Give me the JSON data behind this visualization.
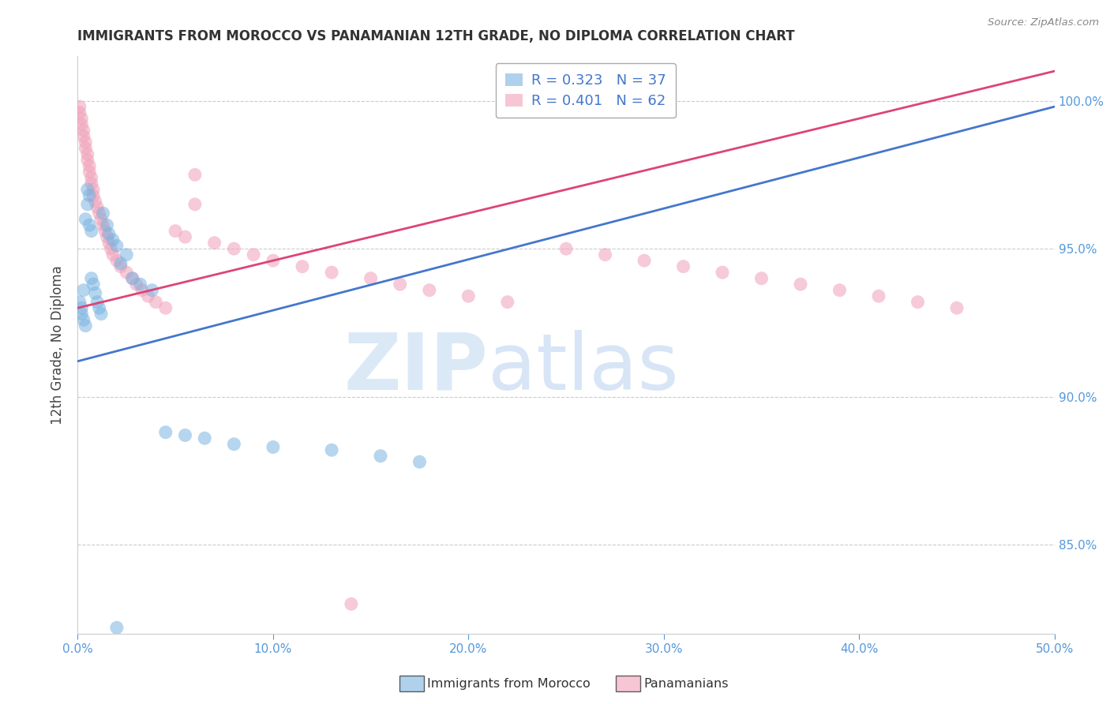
{
  "title": "IMMIGRANTS FROM MOROCCO VS PANAMANIAN 12TH GRADE, NO DIPLOMA CORRELATION CHART",
  "source": "Source: ZipAtlas.com",
  "ylabel": "12th Grade, No Diploma",
  "xlim": [
    0.0,
    0.5
  ],
  "ylim": [
    0.82,
    1.015
  ],
  "xtick_labels": [
    "0.0%",
    "",
    "",
    "",
    "",
    "10.0%",
    "",
    "",
    "",
    "",
    "20.0%",
    "",
    "",
    "",
    "",
    "30.0%",
    "",
    "",
    "",
    "",
    "40.0%",
    "",
    "",
    "",
    "",
    "50.0%"
  ],
  "xtick_vals": [
    0.0,
    0.02,
    0.04,
    0.06,
    0.08,
    0.1,
    0.12,
    0.14,
    0.16,
    0.18,
    0.2,
    0.22,
    0.24,
    0.26,
    0.28,
    0.3,
    0.32,
    0.34,
    0.36,
    0.38,
    0.4,
    0.42,
    0.44,
    0.46,
    0.48,
    0.5
  ],
  "ytick_labels": [
    "85.0%",
    "90.0%",
    "95.0%",
    "100.0%"
  ],
  "ytick_vals": [
    0.85,
    0.9,
    0.95,
    1.0
  ],
  "grid_color": "#cccccc",
  "blue_color": "#7ab3e0",
  "pink_color": "#f0a0b8",
  "blue_line_color": "#4477cc",
  "pink_line_color": "#dd4477",
  "legend_r_blue": "R = 0.323",
  "legend_n_blue": "N = 37",
  "legend_r_pink": "R = 0.401",
  "legend_n_pink": "N = 62",
  "watermark_zip": "ZIP",
  "watermark_atlas": "atlas",
  "legend_label_blue": "Immigrants from Morocco",
  "legend_label_pink": "Panamanians",
  "blue_scatter_x": [
    0.001,
    0.002,
    0.002,
    0.003,
    0.003,
    0.004,
    0.004,
    0.005,
    0.005,
    0.006,
    0.006,
    0.007,
    0.007,
    0.008,
    0.009,
    0.01,
    0.011,
    0.012,
    0.013,
    0.015,
    0.016,
    0.018,
    0.02,
    0.022,
    0.025,
    0.028,
    0.032,
    0.038,
    0.045,
    0.055,
    0.065,
    0.08,
    0.1,
    0.13,
    0.155,
    0.175,
    0.02
  ],
  "blue_scatter_y": [
    0.932,
    0.93,
    0.928,
    0.926,
    0.936,
    0.924,
    0.96,
    0.97,
    0.965,
    0.968,
    0.958,
    0.956,
    0.94,
    0.938,
    0.935,
    0.932,
    0.93,
    0.928,
    0.962,
    0.958,
    0.955,
    0.953,
    0.951,
    0.945,
    0.948,
    0.94,
    0.938,
    0.936,
    0.888,
    0.887,
    0.886,
    0.884,
    0.883,
    0.882,
    0.88,
    0.878,
    0.822
  ],
  "pink_scatter_x": [
    0.001,
    0.001,
    0.002,
    0.002,
    0.003,
    0.003,
    0.004,
    0.004,
    0.005,
    0.005,
    0.006,
    0.006,
    0.007,
    0.007,
    0.008,
    0.008,
    0.009,
    0.01,
    0.011,
    0.012,
    0.013,
    0.014,
    0.015,
    0.016,
    0.017,
    0.018,
    0.02,
    0.022,
    0.025,
    0.028,
    0.03,
    0.033,
    0.036,
    0.04,
    0.045,
    0.05,
    0.055,
    0.06,
    0.07,
    0.08,
    0.09,
    0.1,
    0.115,
    0.13,
    0.15,
    0.165,
    0.18,
    0.2,
    0.22,
    0.25,
    0.27,
    0.29,
    0.31,
    0.33,
    0.35,
    0.37,
    0.39,
    0.41,
    0.43,
    0.45,
    0.14,
    0.06
  ],
  "pink_scatter_y": [
    0.996,
    0.998,
    0.994,
    0.992,
    0.99,
    0.988,
    0.986,
    0.984,
    0.982,
    0.98,
    0.978,
    0.976,
    0.974,
    0.972,
    0.97,
    0.968,
    0.966,
    0.964,
    0.962,
    0.96,
    0.958,
    0.956,
    0.954,
    0.952,
    0.95,
    0.948,
    0.946,
    0.944,
    0.942,
    0.94,
    0.938,
    0.936,
    0.934,
    0.932,
    0.93,
    0.956,
    0.954,
    0.975,
    0.952,
    0.95,
    0.948,
    0.946,
    0.944,
    0.942,
    0.94,
    0.938,
    0.936,
    0.934,
    0.932,
    0.95,
    0.948,
    0.946,
    0.944,
    0.942,
    0.94,
    0.938,
    0.936,
    0.934,
    0.932,
    0.93,
    0.83,
    0.965
  ],
  "blue_line_x0": 0.0,
  "blue_line_x1": 0.5,
  "blue_line_y0": 0.912,
  "blue_line_y1": 0.998,
  "pink_line_x0": 0.0,
  "pink_line_x1": 0.5,
  "pink_line_y0": 0.93,
  "pink_line_y1": 1.01
}
